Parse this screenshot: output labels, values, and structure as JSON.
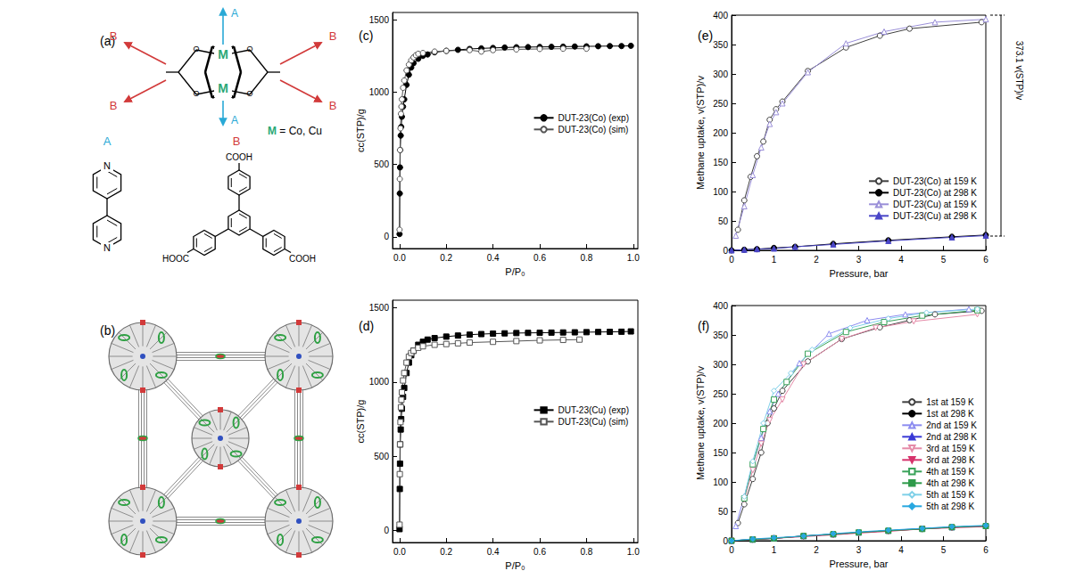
{
  "diagram": {
    "a": {
      "label": "(a)",
      "metal": "M",
      "metal_note": "M = Co, Cu",
      "pillar": "A",
      "linker": "B",
      "oxygen": "O",
      "nitrogen": "N",
      "acid": "COOH",
      "acid_mirrored": "HOOC"
    },
    "b": {
      "label": "(b)"
    }
  },
  "chart_data": [
    {
      "type": "line",
      "title": "(c)",
      "x_label": "P/P₀",
      "y_label": "cc(STP)/g",
      "xlim": [
        -0.03,
        1.02
      ],
      "ylim": [
        -80,
        1550
      ],
      "xticks": [
        {
          "value": 0,
          "label": "0.0"
        },
        0.2,
        0.4,
        0.6,
        0.8,
        {
          "value": 1,
          "label": "1.0"
        }
      ],
      "yticks": [
        0,
        500,
        1000,
        1500
      ],
      "grid": false,
      "legend": "center right",
      "series": [
        {
          "name": "DUT-23(Co) (exp)",
          "color": "#000000",
          "marker": "circle",
          "line_style": "solid",
          "x": [
            0,
            0.001,
            0.002,
            0.003,
            0.005,
            0.007,
            0.01,
            0.015,
            0.02,
            0.03,
            0.04,
            0.05,
            0.06,
            0.08,
            0.1,
            0.12,
            0.15,
            0.2,
            0.25,
            0.3,
            0.35,
            0.4,
            0.45,
            0.5,
            0.55,
            0.6,
            0.65,
            0.7,
            0.75,
            0.8,
            0.85,
            0.9,
            0.95,
            0.99
          ],
          "values": [
            20,
            300,
            480,
            600,
            700,
            760,
            830,
            900,
            950,
            1050,
            1120,
            1170,
            1200,
            1230,
            1250,
            1260,
            1275,
            1285,
            1292,
            1298,
            1302,
            1305,
            1308,
            1310,
            1311,
            1312,
            1313,
            1314,
            1315,
            1316,
            1317,
            1318,
            1318,
            1320
          ]
        },
        {
          "name": "DUT-23(Co) (sim)",
          "color": "#555555",
          "marker": "circle-open",
          "line_style": "solid",
          "x": [
            0,
            0.001,
            0.002,
            0.004,
            0.006,
            0.008,
            0.01,
            0.015,
            0.02,
            0.03,
            0.04,
            0.05,
            0.06,
            0.07,
            0.08,
            0.1,
            0.15,
            0.2,
            0.3,
            0.35,
            0.4,
            0.5,
            0.6,
            0.7,
            0.8
          ],
          "values": [
            50,
            400,
            600,
            750,
            850,
            900,
            950,
            1030,
            1080,
            1150,
            1190,
            1220,
            1240,
            1255,
            1265,
            1270,
            1280,
            1285,
            1290,
            1280,
            1290,
            1295,
            1298,
            1300,
            1300
          ]
        }
      ]
    },
    {
      "type": "line",
      "title": "(d)",
      "x_label": "P/P₀",
      "y_label": "cc(STP)/g",
      "xlim": [
        -0.03,
        1.02
      ],
      "ylim": [
        -80,
        1550
      ],
      "xticks": [
        {
          "value": 0,
          "label": "0.0"
        },
        0.2,
        0.4,
        0.6,
        0.8,
        {
          "value": 1,
          "label": "1.0"
        }
      ],
      "yticks": [
        0,
        500,
        1000,
        1500
      ],
      "grid": false,
      "legend": "center right",
      "series": [
        {
          "name": "DUT-23(Cu) (exp)",
          "color": "#000000",
          "marker": "square",
          "line_style": "solid",
          "x": [
            0,
            0.001,
            0.002,
            0.003,
            0.005,
            0.007,
            0.01,
            0.015,
            0.02,
            0.03,
            0.04,
            0.05,
            0.06,
            0.08,
            0.1,
            0.12,
            0.15,
            0.2,
            0.25,
            0.3,
            0.35,
            0.4,
            0.45,
            0.5,
            0.55,
            0.6,
            0.65,
            0.7,
            0.75,
            0.8,
            0.85,
            0.9,
            0.95,
            0.99
          ],
          "values": [
            10,
            280,
            450,
            580,
            680,
            750,
            820,
            900,
            960,
            1060,
            1130,
            1180,
            1210,
            1250,
            1270,
            1285,
            1295,
            1305,
            1312,
            1318,
            1322,
            1325,
            1327,
            1329,
            1330,
            1331,
            1332,
            1333,
            1334,
            1335,
            1336,
            1337,
            1338,
            1340
          ]
        },
        {
          "name": "DUT-23(Cu) (sim)",
          "color": "#555555",
          "marker": "square-open",
          "line_style": "solid",
          "x": [
            0,
            0.001,
            0.002,
            0.004,
            0.006,
            0.008,
            0.01,
            0.015,
            0.02,
            0.03,
            0.04,
            0.05,
            0.06,
            0.08,
            0.1,
            0.15,
            0.2,
            0.25,
            0.3,
            0.4,
            0.5,
            0.6,
            0.7,
            0.77
          ],
          "values": [
            40,
            380,
            580,
            730,
            830,
            880,
            930,
            1010,
            1060,
            1130,
            1170,
            1195,
            1210,
            1230,
            1240,
            1250,
            1255,
            1260,
            1265,
            1270,
            1275,
            1280,
            1283,
            1285
          ]
        }
      ]
    },
    {
      "type": "line",
      "title": "(e)",
      "x_label": "Pressure, bar",
      "y_label": "Methane uptake, v(STP)/v",
      "xlim": [
        0,
        6
      ],
      "ylim": [
        0,
        400
      ],
      "xticks": [
        0,
        1,
        2,
        3,
        4,
        5,
        6
      ],
      "yticks": [
        0,
        50,
        100,
        150,
        200,
        250,
        300,
        350,
        400
      ],
      "grid": false,
      "legend": "lower right",
      "annotations": [
        "373.1 v(STP)/v"
      ],
      "series": [
        {
          "name": "DUT-23(Co) at 159 K",
          "color": "#404040",
          "marker": "circle-open",
          "line_style": "solid",
          "x": [
            0.15,
            0.3,
            0.45,
            0.6,
            0.75,
            0.9,
            1.05,
            1.2,
            1.8,
            2.7,
            3.5,
            4.2,
            5.9
          ],
          "values": [
            35,
            85,
            125,
            160,
            185,
            222,
            240,
            253,
            305,
            345,
            365,
            377,
            388
          ]
        },
        {
          "name": "DUT-23(Co) at 298 K",
          "color": "#000000",
          "marker": "circle",
          "line_style": "solid",
          "x": [
            0,
            0.3,
            0.6,
            1.0,
            1.5,
            2.4,
            3.7,
            5.2,
            6
          ],
          "values": [
            0,
            1,
            2,
            4,
            6,
            11,
            17,
            23,
            26
          ]
        },
        {
          "name": "DUT-23(Cu) at 159 K",
          "color": "#9a8fd8",
          "marker": "triangle-open",
          "line_style": "solid",
          "x": [
            0.1,
            0.3,
            0.5,
            0.7,
            0.9,
            1.05,
            1.2,
            1.8,
            2.7,
            3.6,
            4.8,
            6
          ],
          "values": [
            25,
            75,
            128,
            175,
            215,
            235,
            250,
            303,
            352,
            372,
            388,
            393
          ]
        },
        {
          "name": "DUT-23(Cu) at 298 K",
          "color": "#4a46c8",
          "marker": "triangle",
          "line_style": "solid",
          "x": [
            0,
            0.3,
            0.6,
            1.0,
            1.5,
            2.4,
            3.7,
            5.2,
            6
          ],
          "values": [
            0,
            1,
            2,
            3,
            6,
            10,
            16,
            22,
            25
          ]
        }
      ]
    },
    {
      "type": "line",
      "title": "(f)",
      "x_label": "Pressure, bar",
      "y_label": "Methane uptake, v(STP)/v",
      "xlim": [
        0,
        6
      ],
      "ylim": [
        0,
        400
      ],
      "xticks": [
        0,
        1,
        2,
        3,
        4,
        5,
        6
      ],
      "yticks": [
        0,
        50,
        100,
        150,
        200,
        250,
        300,
        350,
        400
      ],
      "grid": false,
      "legend": "lower right",
      "series": [
        {
          "name": "1st at 159 K",
          "color": "#404040",
          "marker": "circle-open",
          "line_style": "solid",
          "x": [
            0.15,
            0.3,
            0.5,
            0.7,
            0.85,
            1.0,
            1.2,
            1.8,
            2.6,
            3.5,
            4.2,
            4.8,
            5.9
          ],
          "values": [
            30,
            62,
            105,
            150,
            200,
            225,
            255,
            305,
            343,
            363,
            375,
            385,
            391
          ]
        },
        {
          "name": "1st at 298 K",
          "color": "#000000",
          "marker": "circle",
          "line_style": "solid",
          "x": [
            0,
            0.5,
            1,
            1.7,
            2.4,
            3,
            3.7,
            4.5,
            5.2,
            6
          ],
          "values": [
            0,
            2,
            4,
            8,
            11,
            14,
            17,
            20,
            23,
            25
          ]
        },
        {
          "name": "2nd at 159 K",
          "color": "#8c8cf0",
          "marker": "triangle-open",
          "line_style": "solid",
          "x": [
            0.1,
            0.3,
            0.5,
            0.7,
            0.9,
            1.1,
            1.6,
            2.3,
            3.2,
            4.1,
            5.6
          ],
          "values": [
            25,
            75,
            130,
            175,
            220,
            250,
            302,
            352,
            375,
            385,
            394
          ]
        },
        {
          "name": "2nd at 298 K",
          "color": "#3a3ad6",
          "marker": "triangle",
          "line_style": "solid",
          "x": [
            0,
            0.5,
            1,
            1.7,
            2.4,
            3,
            3.7,
            4.5,
            5.2,
            6
          ],
          "values": [
            0,
            2,
            4,
            8,
            11,
            14,
            17,
            21,
            23,
            25
          ]
        },
        {
          "name": "3rd at 159 K",
          "color": "#e58aa8",
          "marker": "triangle-down-open",
          "line_style": "solid",
          "x": [
            0.3,
            0.5,
            0.7,
            0.9,
            1.2,
            1.7,
            2.6,
            3.4,
            4.3,
            5.8
          ],
          "values": [
            70,
            120,
            165,
            205,
            240,
            300,
            343,
            362,
            373,
            385
          ]
        },
        {
          "name": "3rd at 298 K",
          "color": "#d6336c",
          "marker": "triangle-down",
          "line_style": "solid",
          "x": [
            0,
            0.5,
            1,
            1.7,
            2.4,
            3,
            3.7,
            4.5,
            5.2,
            6
          ],
          "values": [
            0,
            2,
            4,
            7,
            10,
            13,
            16,
            20,
            22,
            24
          ]
        },
        {
          "name": "4th at 159 K",
          "color": "#3aa35a",
          "marker": "square-open",
          "line_style": "solid",
          "x": [
            0.3,
            0.5,
            0.75,
            1.0,
            1.3,
            1.8,
            2.7,
            3.6,
            4.5,
            5.8
          ],
          "values": [
            72,
            130,
            190,
            240,
            270,
            318,
            355,
            372,
            383,
            392
          ]
        },
        {
          "name": "4th at 298 K",
          "color": "#2e9a4a",
          "marker": "square",
          "line_style": "solid",
          "x": [
            0,
            0.5,
            1,
            1.7,
            2.4,
            3,
            3.7,
            4.5,
            5.2,
            6
          ],
          "values": [
            0,
            2,
            4,
            8,
            11,
            14,
            17,
            20,
            23,
            25
          ]
        },
        {
          "name": "5th at 159 K",
          "color": "#7fd0e8",
          "marker": "diamond-open",
          "line_style": "solid",
          "x": [
            0.3,
            0.5,
            0.75,
            1.0,
            1.4,
            1.9,
            2.8,
            3.7,
            4.6,
            5.8
          ],
          "values": [
            75,
            135,
            200,
            255,
            285,
            325,
            362,
            378,
            388,
            394
          ]
        },
        {
          "name": "5th at 298 K",
          "color": "#29a8e0",
          "marker": "diamond",
          "line_style": "solid",
          "x": [
            0,
            0.5,
            1,
            1.7,
            2.4,
            3,
            3.7,
            4.5,
            5.2,
            6
          ],
          "values": [
            0,
            3,
            5,
            8,
            12,
            15,
            18,
            21,
            24,
            26
          ]
        }
      ]
    }
  ]
}
